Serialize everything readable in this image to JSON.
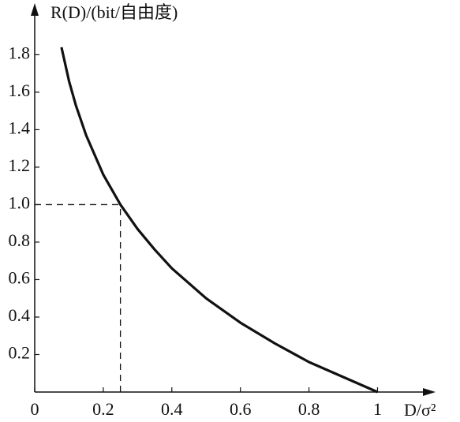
{
  "chart_data": {
    "type": "line",
    "y_label": "R(D)/(bit/自由度)",
    "x_label": "D/σ²",
    "x": [
      0.078,
      0.1,
      0.12,
      0.15,
      0.2,
      0.25,
      0.3,
      0.35,
      0.4,
      0.5,
      0.6,
      0.7,
      0.8,
      0.9,
      1.0
    ],
    "values": [
      1.84,
      1.66,
      1.53,
      1.37,
      1.16,
      1.0,
      0.87,
      0.76,
      0.66,
      0.5,
      0.37,
      0.26,
      0.16,
      0.08,
      0
    ],
    "color": "#111111",
    "reference": {
      "x": 0.25,
      "y": 1.0
    },
    "xlim": [
      0,
      1.16
    ],
    "ylim": [
      0,
      2.05
    ],
    "xticks": [
      0,
      0.2,
      0.4,
      0.6,
      0.8,
      1
    ],
    "yticks": [
      0.2,
      0.4,
      0.6,
      0.8,
      {
        "value": 1,
        "label": "1.0"
      },
      1.2,
      1.4,
      1.6,
      1.8
    ]
  }
}
